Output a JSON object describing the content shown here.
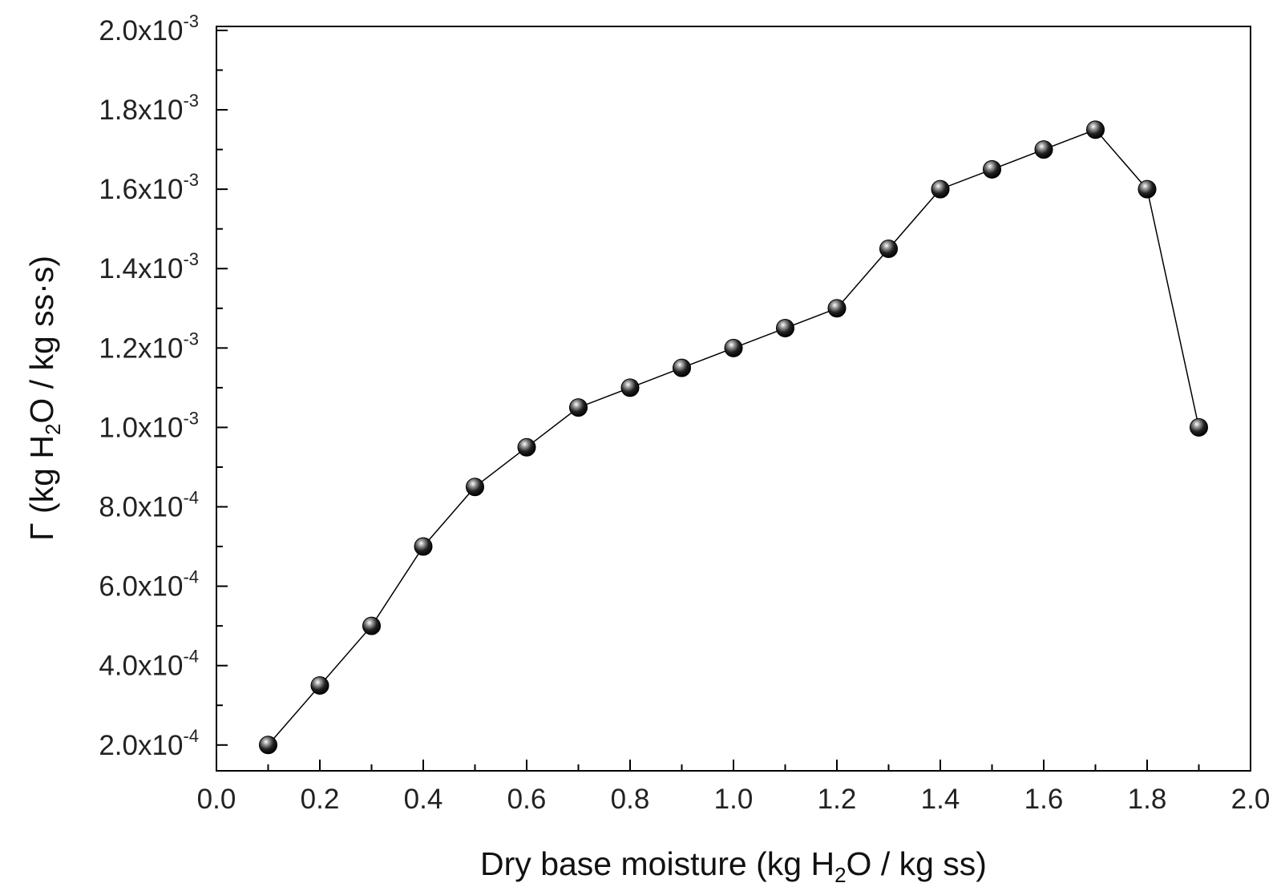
{
  "chart_data": {
    "type": "line",
    "marker": "sphere",
    "line_color": "#000000",
    "marker_color": "#111111",
    "xlabel": {
      "before": "Dry base moisture (kg H",
      "sub": "2",
      "after": "O / kg ss)"
    },
    "ylabel": {
      "before": "Γ (kg H",
      "sub": "2",
      "after": "O / kg ss·s)"
    },
    "xlim": [
      0.0,
      2.0
    ],
    "ylim": [
      0.000135,
      0.00201
    ],
    "grid": false,
    "x_ticks": [
      {
        "value": 0.0,
        "label": "0.0"
      },
      {
        "value": 0.2,
        "label": "0.2"
      },
      {
        "value": 0.4,
        "label": "0.4"
      },
      {
        "value": 0.6,
        "label": "0.6"
      },
      {
        "value": 0.8,
        "label": "0.8"
      },
      {
        "value": 1.0,
        "label": "1.0"
      },
      {
        "value": 1.2,
        "label": "1.2"
      },
      {
        "value": 1.4,
        "label": "1.4"
      },
      {
        "value": 1.6,
        "label": "1.6"
      },
      {
        "value": 1.8,
        "label": "1.8"
      },
      {
        "value": 2.0,
        "label": "2.0"
      }
    ],
    "y_ticks": [
      {
        "value": 0.0002,
        "mantissa": "2.0x10",
        "exp": "-4"
      },
      {
        "value": 0.0004,
        "mantissa": "4.0x10",
        "exp": "-4"
      },
      {
        "value": 0.0006,
        "mantissa": "6.0x10",
        "exp": "-4"
      },
      {
        "value": 0.0008,
        "mantissa": "8.0x10",
        "exp": "-4"
      },
      {
        "value": 0.001,
        "mantissa": "1.0x10",
        "exp": "-3"
      },
      {
        "value": 0.0012,
        "mantissa": "1.2x10",
        "exp": "-3"
      },
      {
        "value": 0.0014,
        "mantissa": "1.4x10",
        "exp": "-3"
      },
      {
        "value": 0.0016,
        "mantissa": "1.6x10",
        "exp": "-3"
      },
      {
        "value": 0.0018,
        "mantissa": "1.8x10",
        "exp": "-3"
      },
      {
        "value": 0.002,
        "mantissa": "2.0x10",
        "exp": "-3"
      }
    ],
    "series": [
      {
        "x": [
          0.1,
          0.2,
          0.3,
          0.4,
          0.5,
          0.6,
          0.7,
          0.8,
          0.9,
          1.0,
          1.1,
          1.2,
          1.3,
          1.4,
          1.5,
          1.6,
          1.7,
          1.8,
          1.9
        ],
        "y": [
          0.0002,
          0.00035,
          0.0005,
          0.0007,
          0.00085,
          0.00095,
          0.00105,
          0.0011,
          0.00115,
          0.0012,
          0.00125,
          0.0013,
          0.00145,
          0.0016,
          0.00165,
          0.0017,
          0.00175,
          0.0016,
          0.001
        ]
      }
    ]
  }
}
